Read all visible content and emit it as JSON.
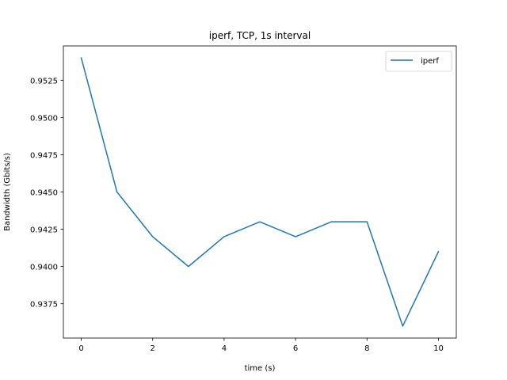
{
  "chart_data": {
    "type": "line",
    "title": "iperf, TCP, 1s interval",
    "xlabel": "time (s)",
    "ylabel": "Bandwidth (Gbits/s)",
    "xlim": [
      -0.5,
      10.5
    ],
    "ylim": [
      0.9352,
      0.9548
    ],
    "xticks": [
      0,
      2,
      4,
      6,
      8,
      10
    ],
    "yticks": [
      0.9375,
      0.94,
      0.9425,
      0.945,
      0.9475,
      0.95,
      0.9525
    ],
    "ytick_labels": [
      "0.9375",
      "0.9400",
      "0.9425",
      "0.9450",
      "0.9475",
      "0.9500",
      "0.9525"
    ],
    "x": [
      0,
      1,
      2,
      3,
      4,
      5,
      6,
      7,
      8,
      9,
      10
    ],
    "series": [
      {
        "name": "iperf",
        "color": "#1f77b4",
        "values": [
          0.954,
          0.945,
          0.942,
          0.94,
          0.942,
          0.943,
          0.942,
          0.943,
          0.943,
          0.936,
          0.941
        ]
      }
    ],
    "grid": false,
    "legend_position": "top-right"
  }
}
